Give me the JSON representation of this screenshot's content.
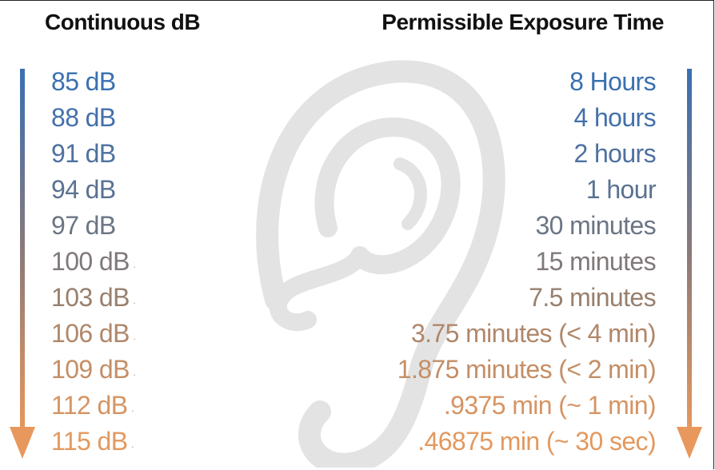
{
  "headers": {
    "left": "Continuous dB",
    "right": "Permissible Exposure Time"
  },
  "rows": [
    {
      "db": "85 dB",
      "time": "8 Hours",
      "color": "#3a70b0",
      "dot": false
    },
    {
      "db": "88 dB",
      "time": "4 hours",
      "color": "#4370aa",
      "dot": false
    },
    {
      "db": "91 dB",
      "time": "2 hours",
      "color": "#4e719f",
      "dot": false
    },
    {
      "db": "94 dB",
      "time": "1 hour",
      "color": "#5a7292",
      "dot": false
    },
    {
      "db": "97 dB",
      "time": "30 minutes",
      "color": "#6b7584",
      "dot": false
    },
    {
      "db": "100 dB",
      "time": "15 minutes",
      "color": "#807879",
      "dot": true
    },
    {
      "db": "103 dB",
      "time": "7.5 minutes",
      "color": "#98806e",
      "dot": true
    },
    {
      "db": "106 dB",
      "time": "3.75 minutes (< 4 min)",
      "color": "#b0876a",
      "dot": true
    },
    {
      "db": "109 dB",
      "time": "1.875 minutes (< 2 min)",
      "color": "#c48e66",
      "dot": true
    },
    {
      "db": "112 dB",
      "time": ".9375 min (~ 1 min)",
      "color": "#d69463",
      "dot": true
    },
    {
      "db": "115 dB",
      "time": ".46875 min (~ 30 sec)",
      "color": "#e3995f",
      "dot": true
    }
  ],
  "arrow_colors": {
    "top": "#3a6fb3",
    "mid": "#8a7a7a",
    "bottom": "#e8985c"
  },
  "icons": {
    "background": "ear-illustration",
    "arrows": "down-arrow-icon"
  }
}
